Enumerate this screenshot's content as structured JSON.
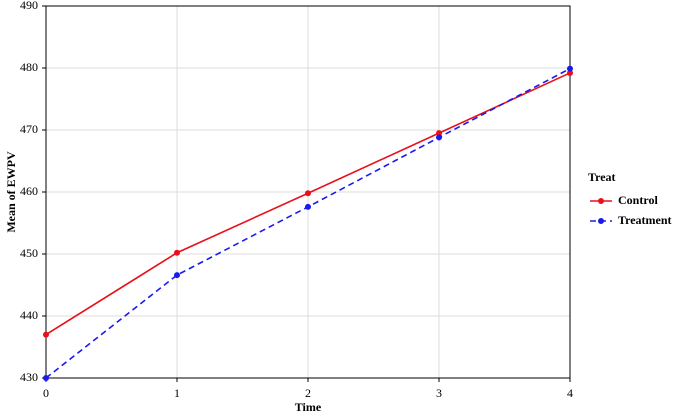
{
  "chart_data": {
    "type": "line",
    "x_label": "Time",
    "y_label": "Mean of EWPV",
    "legend_title": "Treat",
    "legend_position": "right",
    "x": [
      0,
      1,
      2,
      3,
      4
    ],
    "series": [
      {
        "name": "Control",
        "color": "#e8101a",
        "style": "solid",
        "values": [
          437,
          450.2,
          459.8,
          469.5,
          479.2
        ]
      },
      {
        "name": "Treatment",
        "color": "#1a1aee",
        "style": "dashed",
        "values": [
          430,
          446.6,
          457.6,
          468.8,
          479.9
        ]
      }
    ],
    "xlim": [
      0,
      4
    ],
    "xticks": [
      0,
      1,
      2,
      3,
      4
    ],
    "ylim": [
      430,
      490
    ],
    "yticks": [
      430,
      440,
      450,
      460,
      470,
      480,
      490
    ],
    "grid": true
  }
}
